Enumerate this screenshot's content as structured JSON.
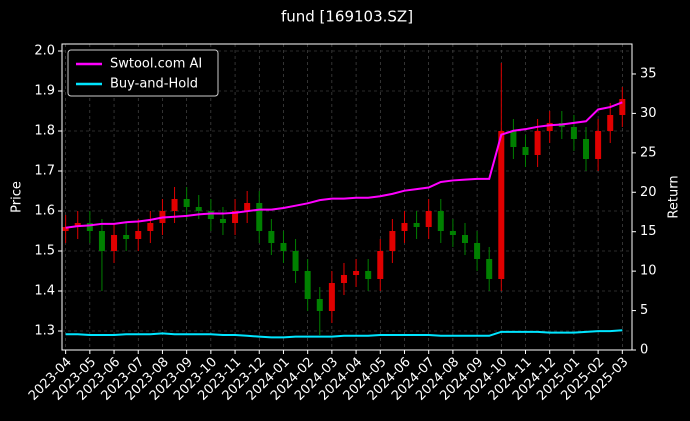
{
  "chart_data": {
    "type": "candlestick",
    "title": "fund [169103.SZ]",
    "y_label": "Price",
    "y2_label": "Return",
    "x": [
      0,
      0.5,
      1,
      1.5,
      2,
      2.5,
      3,
      3.5,
      4,
      4.5,
      5,
      5.5,
      6,
      6.5,
      7,
      7.5,
      8,
      8.5,
      9,
      9.5,
      10,
      10.5,
      11,
      11.5,
      12,
      12.5,
      13,
      13.5,
      14,
      14.5,
      15,
      15.5,
      16,
      16.5,
      17,
      17.5,
      18,
      18.5,
      19,
      19.5,
      20,
      20.5,
      21,
      21.5,
      22,
      22.5,
      23
    ],
    "open": [
      1.55,
      1.56,
      1.57,
      1.55,
      1.5,
      1.54,
      1.53,
      1.55,
      1.57,
      1.6,
      1.63,
      1.61,
      1.6,
      1.58,
      1.57,
      1.6,
      1.62,
      1.55,
      1.52,
      1.5,
      1.45,
      1.38,
      1.35,
      1.42,
      1.44,
      1.45,
      1.43,
      1.5,
      1.55,
      1.57,
      1.56,
      1.6,
      1.55,
      1.54,
      1.52,
      1.48,
      1.43,
      1.8,
      1.76,
      1.74,
      1.8,
      1.82,
      1.81,
      1.78,
      1.73,
      1.8,
      1.84
    ],
    "high": [
      1.59,
      1.6,
      1.6,
      1.58,
      1.57,
      1.57,
      1.58,
      1.6,
      1.63,
      1.66,
      1.66,
      1.64,
      1.63,
      1.61,
      1.63,
      1.65,
      1.65,
      1.58,
      1.55,
      1.53,
      1.48,
      1.41,
      1.45,
      1.47,
      1.48,
      1.48,
      1.53,
      1.58,
      1.6,
      1.6,
      1.63,
      1.63,
      1.58,
      1.57,
      1.55,
      1.51,
      1.97,
      1.83,
      1.79,
      1.83,
      1.85,
      1.85,
      1.84,
      1.81,
      1.83,
      1.87,
      1.91
    ],
    "low": [
      1.52,
      1.53,
      1.52,
      1.4,
      1.47,
      1.5,
      1.5,
      1.52,
      1.54,
      1.57,
      1.58,
      1.58,
      1.55,
      1.54,
      1.54,
      1.57,
      1.52,
      1.49,
      1.47,
      1.42,
      1.35,
      1.29,
      1.32,
      1.39,
      1.41,
      1.4,
      1.4,
      1.47,
      1.52,
      1.53,
      1.53,
      1.52,
      1.51,
      1.49,
      1.45,
      1.4,
      1.4,
      1.73,
      1.71,
      1.71,
      1.77,
      1.78,
      1.75,
      1.7,
      1.7,
      1.77,
      1.81
    ],
    "close": [
      1.56,
      1.57,
      1.55,
      1.5,
      1.54,
      1.53,
      1.55,
      1.57,
      1.6,
      1.63,
      1.61,
      1.6,
      1.58,
      1.57,
      1.6,
      1.62,
      1.55,
      1.52,
      1.5,
      1.45,
      1.38,
      1.35,
      1.42,
      1.44,
      1.45,
      1.43,
      1.5,
      1.55,
      1.57,
      1.56,
      1.6,
      1.55,
      1.54,
      1.52,
      1.48,
      1.43,
      1.8,
      1.76,
      1.74,
      1.8,
      1.82,
      1.81,
      1.78,
      1.73,
      1.8,
      1.84,
      1.88
    ],
    "up_color": "#e00000",
    "down_color": "#008000",
    "series": [
      {
        "name": "Swtool.com AI",
        "color": "#ff00ff",
        "axis": "y2",
        "values": [
          15.5,
          15.7,
          15.8,
          16.0,
          16.0,
          16.2,
          16.3,
          16.5,
          16.8,
          16.9,
          17.0,
          17.2,
          17.3,
          17.3,
          17.4,
          17.6,
          17.8,
          17.8,
          18.0,
          18.3,
          18.6,
          19.0,
          19.2,
          19.2,
          19.3,
          19.3,
          19.5,
          19.8,
          20.2,
          20.4,
          20.6,
          21.3,
          21.5,
          21.6,
          21.7,
          21.7,
          27.3,
          27.8,
          28.0,
          28.3,
          28.5,
          28.6,
          28.8,
          29.0,
          30.5,
          30.8,
          31.4
        ]
      },
      {
        "name": "Buy-and-Hold",
        "color": "#00e5ff",
        "axis": "y2",
        "values": [
          2.0,
          2.0,
          1.9,
          1.9,
          1.9,
          2.0,
          2.0,
          2.0,
          2.1,
          2.0,
          2.0,
          2.0,
          2.0,
          1.9,
          1.9,
          1.8,
          1.7,
          1.6,
          1.6,
          1.7,
          1.7,
          1.7,
          1.7,
          1.8,
          1.8,
          1.8,
          1.9,
          1.9,
          1.9,
          1.9,
          1.9,
          1.8,
          1.8,
          1.8,
          1.8,
          1.8,
          2.3,
          2.3,
          2.3,
          2.3,
          2.2,
          2.2,
          2.2,
          2.3,
          2.4,
          2.4,
          2.5
        ]
      }
    ],
    "xlim": [
      -0.15,
      23.4
    ],
    "xticks": [
      {
        "value": 0,
        "label": "2023-04"
      },
      {
        "value": 1,
        "label": "2023-05"
      },
      {
        "value": 2,
        "label": "2023-06"
      },
      {
        "value": 3,
        "label": "2023-07"
      },
      {
        "value": 4,
        "label": "2023-08"
      },
      {
        "value": 5,
        "label": "2023-09"
      },
      {
        "value": 6,
        "label": "2023-10"
      },
      {
        "value": 7,
        "label": "2023-11"
      },
      {
        "value": 8,
        "label": "2023-12"
      },
      {
        "value": 9,
        "label": "2024-01"
      },
      {
        "value": 10,
        "label": "2024-02"
      },
      {
        "value": 11,
        "label": "2024-03"
      },
      {
        "value": 12,
        "label": "2024-04"
      },
      {
        "value": 13,
        "label": "2024-05"
      },
      {
        "value": 14,
        "label": "2024-06"
      },
      {
        "value": 15,
        "label": "2024-07"
      },
      {
        "value": 16,
        "label": "2024-08"
      },
      {
        "value": 17,
        "label": "2024-09"
      },
      {
        "value": 18,
        "label": "2024-10"
      },
      {
        "value": 19,
        "label": "2024-11"
      },
      {
        "value": 20,
        "label": "2024-12"
      },
      {
        "value": 21,
        "label": "2025-01"
      },
      {
        "value": 22,
        "label": "2025-02"
      },
      {
        "value": 23,
        "label": "2025-03"
      }
    ],
    "ylim": [
      1.2525,
      2.0175
    ],
    "yticks": [
      1.3,
      1.4,
      1.5,
      1.6,
      1.7,
      1.8,
      1.9,
      {
        "value": 2,
        "label": "2.0"
      }
    ],
    "y2lim": [
      0,
      38.8
    ],
    "y2ticks": [
      0,
      5,
      10,
      15,
      20,
      25,
      30,
      35
    ],
    "grid": true,
    "legend": "upper left"
  }
}
